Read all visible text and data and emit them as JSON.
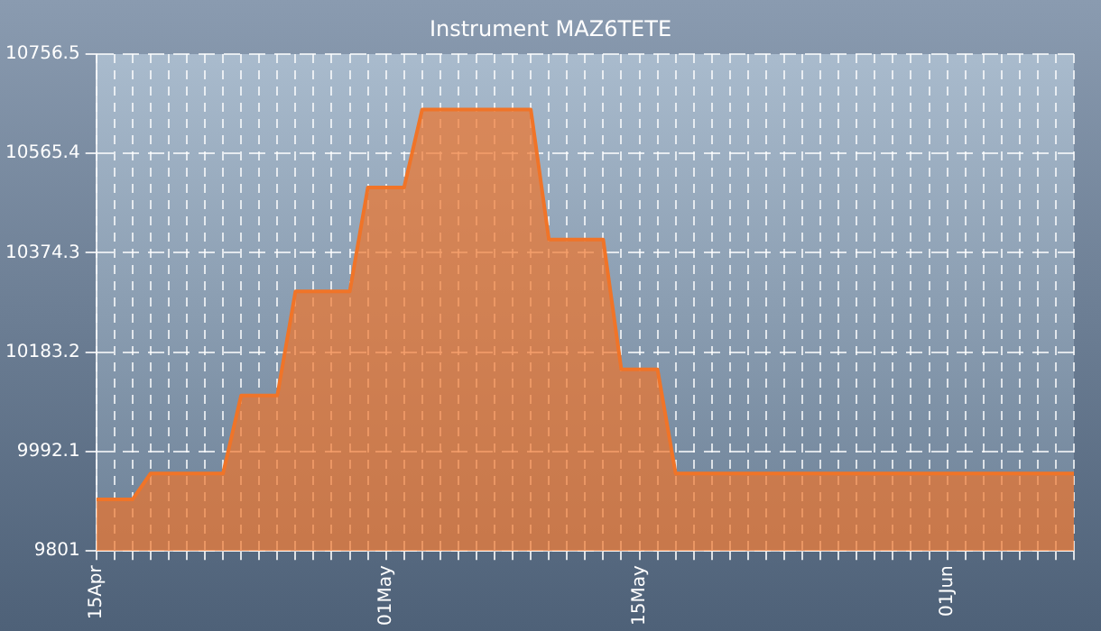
{
  "chart_data": {
    "type": "area",
    "title": "Instrument MAZ6TETE",
    "x": [
      "--04-15",
      "--04-17",
      "--04-18",
      "--04-22",
      "--04-23",
      "--04-25",
      "--04-26",
      "--04-29",
      "--04-30",
      "--05-02",
      "--05-03",
      "--05-09",
      "--05-10",
      "--05-13",
      "--05-14",
      "--05-16",
      "--05-17",
      "--06-08"
    ],
    "series": [
      {
        "color": "#f07428",
        "values": [
          9900,
          9900,
          9950,
          9950,
          10100,
          10100,
          10300,
          10300,
          10500,
          10500,
          10650,
          10650,
          10400,
          10400,
          10150,
          10150,
          9950,
          9950
        ]
      }
    ],
    "xlim": [
      "--04-15",
      "--06-08"
    ],
    "xticks": [
      {
        "value": "--04-15",
        "label": "15Apr"
      },
      {
        "value": "--04-16",
        "label": null
      },
      {
        "value": "--04-17",
        "label": null
      },
      {
        "value": "--04-18",
        "label": null
      },
      {
        "value": "--04-19",
        "label": null
      },
      {
        "value": "--04-20",
        "label": null
      },
      {
        "value": "--04-21",
        "label": null
      },
      {
        "value": "--04-22",
        "label": null
      },
      {
        "value": "--04-23",
        "label": null
      },
      {
        "value": "--04-24",
        "label": null
      },
      {
        "value": "--04-25",
        "label": null
      },
      {
        "value": "--04-26",
        "label": null
      },
      {
        "value": "--04-27",
        "label": null
      },
      {
        "value": "--04-28",
        "label": null
      },
      {
        "value": "--04-29",
        "label": null
      },
      {
        "value": "--04-30",
        "label": null
      },
      {
        "value": "--05-01",
        "label": "01May"
      },
      {
        "value": "--05-02",
        "label": null
      },
      {
        "value": "--05-03",
        "label": null
      },
      {
        "value": "--05-04",
        "label": null
      },
      {
        "value": "--05-05",
        "label": null
      },
      {
        "value": "--05-06",
        "label": null
      },
      {
        "value": "--05-07",
        "label": null
      },
      {
        "value": "--05-08",
        "label": null
      },
      {
        "value": "--05-09",
        "label": null
      },
      {
        "value": "--05-10",
        "label": null
      },
      {
        "value": "--05-11",
        "label": null
      },
      {
        "value": "--05-12",
        "label": null
      },
      {
        "value": "--05-13",
        "label": null
      },
      {
        "value": "--05-14",
        "label": null
      },
      {
        "value": "--05-15",
        "label": "15May"
      },
      {
        "value": "--05-16",
        "label": null
      },
      {
        "value": "--05-17",
        "label": null
      },
      {
        "value": "--05-18",
        "label": null
      },
      {
        "value": "--05-19",
        "label": null
      },
      {
        "value": "--05-20",
        "label": null
      },
      {
        "value": "--05-21",
        "label": null
      },
      {
        "value": "--05-22",
        "label": null
      },
      {
        "value": "--05-23",
        "label": null
      },
      {
        "value": "--05-24",
        "label": null
      },
      {
        "value": "--05-25",
        "label": null
      },
      {
        "value": "--05-26",
        "label": null
      },
      {
        "value": "--05-27",
        "label": null
      },
      {
        "value": "--05-28",
        "label": null
      },
      {
        "value": "--05-29",
        "label": null
      },
      {
        "value": "--05-30",
        "label": null
      },
      {
        "value": "--05-31",
        "label": null
      },
      {
        "value": "--06-01",
        "label": "01Jun"
      },
      {
        "value": "--06-02",
        "label": null
      },
      {
        "value": "--06-03",
        "label": null
      },
      {
        "value": "--06-04",
        "label": null
      },
      {
        "value": "--06-05",
        "label": null
      },
      {
        "value": "--06-06",
        "label": null
      },
      {
        "value": "--06-07",
        "label": null
      },
      {
        "value": "--06-08",
        "label": null
      }
    ],
    "ylim": [
      9801,
      10756.5
    ],
    "yticks": [
      9801,
      9992.1,
      10183.2,
      10374.3,
      10565.4,
      10756.5
    ],
    "grid": true
  }
}
